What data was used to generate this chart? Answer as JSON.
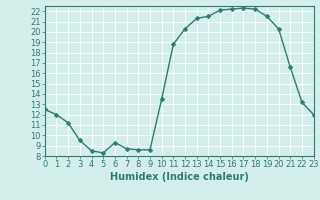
{
  "x": [
    0,
    1,
    2,
    3,
    4,
    5,
    6,
    7,
    8,
    9,
    10,
    11,
    12,
    13,
    14,
    15,
    16,
    17,
    18,
    19,
    20,
    21,
    22,
    23
  ],
  "y": [
    12.5,
    12.0,
    11.2,
    9.5,
    8.5,
    8.3,
    9.3,
    8.7,
    8.6,
    8.6,
    13.5,
    18.8,
    20.3,
    21.3,
    21.5,
    22.1,
    22.2,
    22.3,
    22.2,
    21.5,
    20.3,
    16.6,
    13.2,
    12.0
  ],
  "xlim": [
    0,
    23
  ],
  "ylim": [
    8,
    22.5
  ],
  "yticks": [
    8,
    9,
    10,
    11,
    12,
    13,
    14,
    15,
    16,
    17,
    18,
    19,
    20,
    21,
    22
  ],
  "xticks": [
    0,
    1,
    2,
    3,
    4,
    5,
    6,
    7,
    8,
    9,
    10,
    11,
    12,
    13,
    14,
    15,
    16,
    17,
    18,
    19,
    20,
    21,
    22,
    23
  ],
  "xlabel": "Humidex (Indice chaleur)",
  "line_color": "#2d7d6f",
  "marker_color": "#2d7d6f",
  "bg_color": "#d4eeec",
  "grid_color": "#ffffff",
  "tick_color": "#2d7d6f",
  "label_color": "#2d7d6f",
  "font_size": 6,
  "xlabel_font_size": 7,
  "line_width": 1.0,
  "marker_size": 2.5
}
